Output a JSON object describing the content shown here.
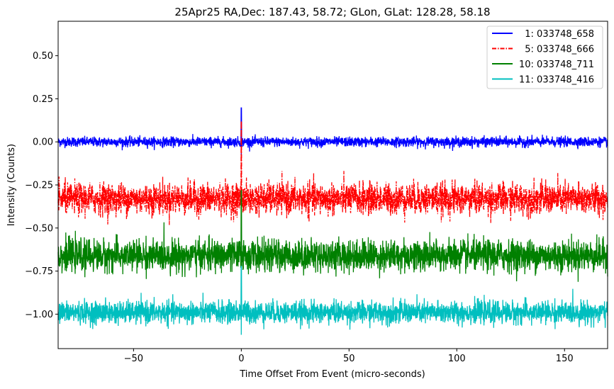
{
  "chart_data": {
    "type": "line",
    "title": "25Apr25 RA,Dec:  187.43,  58.72; GLon, GLat:  128.28,  58.18",
    "xlabel": "Time Offset From Event (micro-seconds)",
    "ylabel": "Intensity (Counts)",
    "xlim": [
      -85,
      170
    ],
    "ylim": [
      -1.2,
      0.7
    ],
    "xticks": [
      -50,
      0,
      50,
      100,
      150
    ],
    "xtick_labels": [
      "−50",
      "0",
      "50",
      "100",
      "150"
    ],
    "yticks": [
      0.5,
      0.25,
      0.0,
      -0.25,
      -0.5,
      -0.75,
      -1.0
    ],
    "ytick_labels": [
      "0.50",
      "0.25",
      "0.00",
      "−0.25",
      "−0.50",
      "−0.75",
      "−1.00"
    ],
    "grid": false,
    "legend_position": "top-right",
    "series": [
      {
        "name": "  1: 033748_658",
        "color": "#0000ff",
        "style": "solid",
        "offset": 0.0,
        "noise_sd": 0.014,
        "spike_x": 0,
        "spike_max": 0.2,
        "spike_min": -0.08
      },
      {
        "name": "  5: 033748_666",
        "color": "#ff0000",
        "style": "dashdot",
        "offset": -0.33,
        "noise_sd": 0.045,
        "spike_x": 0,
        "spike_max": 0.12,
        "spike_min": -0.52
      },
      {
        "name": "10: 033748_711",
        "color": "#008000",
        "style": "solid",
        "offset": -0.66,
        "noise_sd": 0.045,
        "spike_x": 0,
        "spike_max": -0.28,
        "spike_min": -0.78
      },
      {
        "name": "11: 033748_416",
        "color": "#00bfbf",
        "style": "solid",
        "offset": -0.99,
        "noise_sd": 0.032,
        "spike_x": 0,
        "spike_max": -0.72,
        "spike_min": -1.12
      }
    ]
  }
}
